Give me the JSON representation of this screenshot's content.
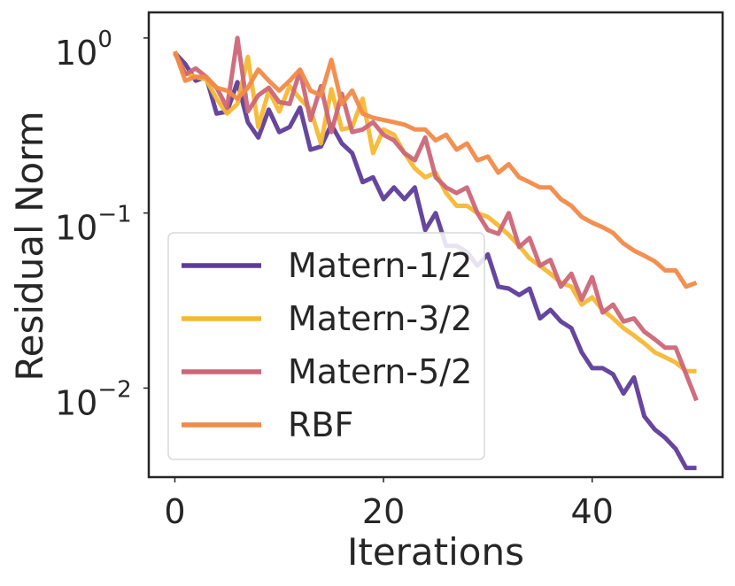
{
  "chart_data": {
    "type": "line",
    "xlabel": "Iterations",
    "ylabel": "Residual Norm",
    "yscale": "log",
    "xlim": [
      -2.5,
      52.5
    ],
    "ylim": [
      0.0031,
      1.4
    ],
    "x_ticks": [
      0,
      20,
      40
    ],
    "x_tick_labels": [
      "0",
      "20",
      "40"
    ],
    "y_ticks": [
      1,
      0.1,
      0.01
    ],
    "y_tick_labels": [
      {
        "base": "10",
        "exp": "0"
      },
      {
        "base": "10",
        "exp": "−1"
      },
      {
        "base": "10",
        "exp": "−2"
      }
    ],
    "legend_position": "lower-left",
    "series": [
      {
        "name": "Matern-1/2",
        "color": "#5e3c99",
        "values": [
          0.82,
          0.71,
          0.57,
          0.6,
          0.37,
          0.38,
          0.56,
          0.33,
          0.27,
          0.39,
          0.29,
          0.31,
          0.4,
          0.23,
          0.24,
          0.32,
          0.25,
          0.22,
          0.15,
          0.16,
          0.12,
          0.14,
          0.12,
          0.14,
          0.08,
          0.1,
          0.065,
          0.065,
          0.06,
          0.05,
          0.058,
          0.038,
          0.037,
          0.034,
          0.037,
          0.025,
          0.028,
          0.024,
          0.022,
          0.016,
          0.013,
          0.013,
          0.012,
          0.0093,
          0.0115,
          0.0069,
          0.0058,
          0.0052,
          0.0045,
          0.0035,
          0.0035
        ]
      },
      {
        "name": "Matern-3/2",
        "color": "#f5b833",
        "values": [
          0.82,
          0.63,
          0.6,
          0.58,
          0.45,
          0.37,
          0.42,
          0.78,
          0.31,
          0.5,
          0.38,
          0.53,
          0.45,
          0.39,
          0.25,
          0.51,
          0.3,
          0.31,
          0.45,
          0.22,
          0.3,
          0.28,
          0.22,
          0.18,
          0.16,
          0.17,
          0.13,
          0.11,
          0.11,
          0.1,
          0.095,
          0.085,
          0.075,
          0.065,
          0.055,
          0.05,
          0.045,
          0.04,
          0.038,
          0.03,
          0.033,
          0.028,
          0.025,
          0.022,
          0.02,
          0.018,
          0.016,
          0.015,
          0.014,
          0.0125,
          0.0125
        ]
      },
      {
        "name": "Matern-5/2",
        "color": "#cc6677",
        "values": [
          0.82,
          0.62,
          0.67,
          0.6,
          0.52,
          0.4,
          1.0,
          0.38,
          0.47,
          0.52,
          0.43,
          0.42,
          0.65,
          0.34,
          0.53,
          0.29,
          0.48,
          0.29,
          0.3,
          0.33,
          0.28,
          0.26,
          0.22,
          0.2,
          0.27,
          0.16,
          0.14,
          0.13,
          0.14,
          0.1,
          0.08,
          0.076,
          0.1,
          0.064,
          0.072,
          0.05,
          0.054,
          0.038,
          0.045,
          0.032,
          0.043,
          0.027,
          0.03,
          0.024,
          0.025,
          0.021,
          0.019,
          0.017,
          0.017,
          0.012,
          0.0085
        ]
      },
      {
        "name": "RBF",
        "color": "#f28a48",
        "values": [
          0.84,
          0.57,
          0.6,
          0.6,
          0.52,
          0.5,
          0.45,
          0.52,
          0.66,
          0.57,
          0.5,
          0.57,
          0.66,
          0.5,
          0.47,
          0.75,
          0.42,
          0.5,
          0.37,
          0.35,
          0.34,
          0.33,
          0.32,
          0.3,
          0.3,
          0.26,
          0.28,
          0.23,
          0.25,
          0.2,
          0.21,
          0.17,
          0.19,
          0.16,
          0.15,
          0.14,
          0.14,
          0.12,
          0.11,
          0.095,
          0.088,
          0.083,
          0.077,
          0.067,
          0.061,
          0.057,
          0.053,
          0.047,
          0.047,
          0.038,
          0.04
        ]
      }
    ]
  }
}
